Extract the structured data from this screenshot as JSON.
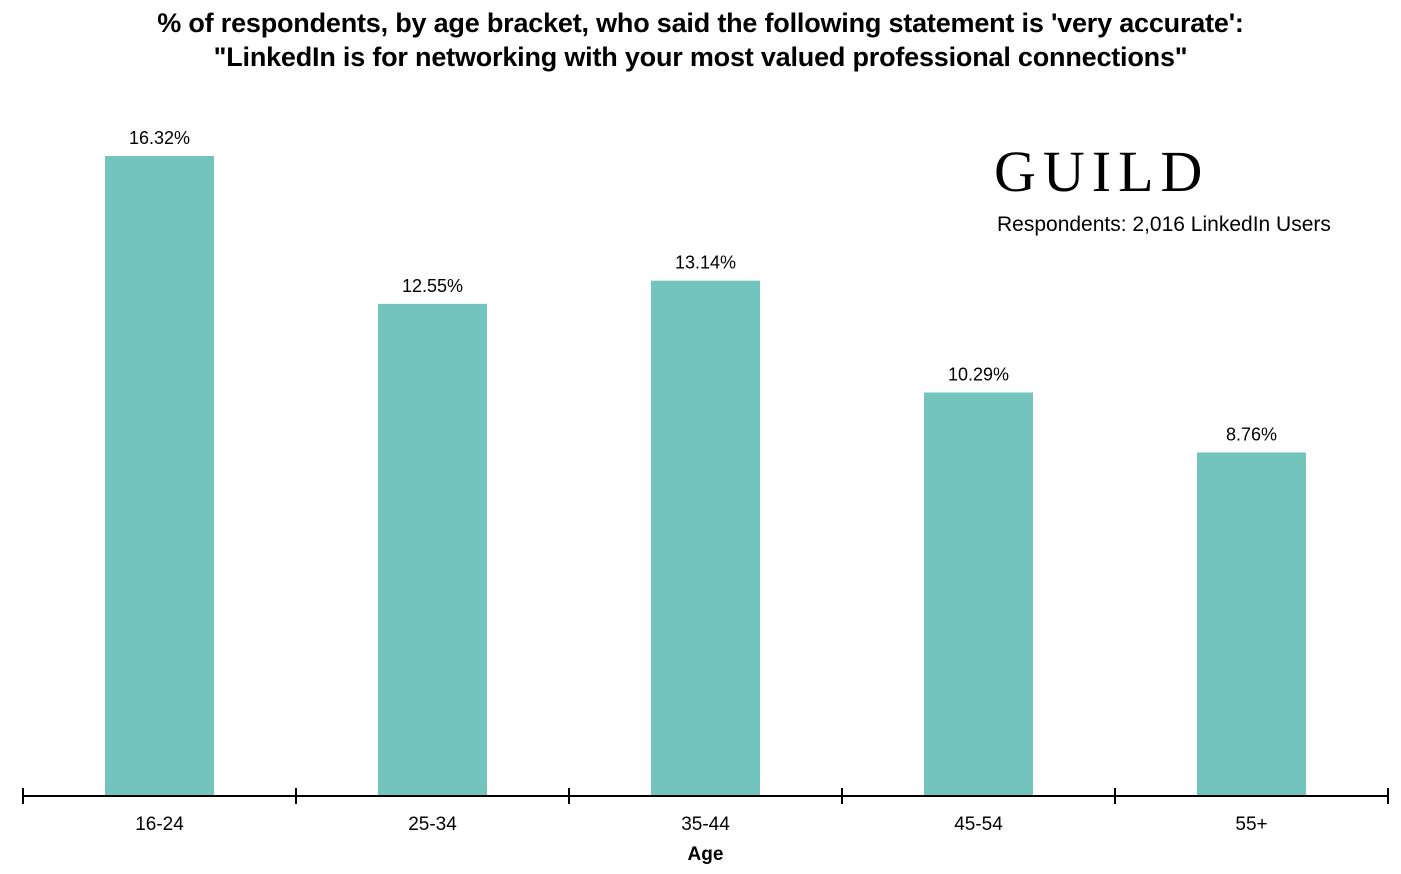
{
  "title_line1": "% of respondents, by age bracket, who said the following statement is 'very accurate':",
  "title_line2": "\"LinkedIn is for networking with your most valued professional connections\"",
  "brand": "GUILD",
  "respondents_note": "Respondents: 2,016 LinkedIn Users",
  "chart_data": {
    "type": "bar",
    "title": "% of respondents, by age bracket, who said the following statement is 'very accurate': \"LinkedIn is for networking with your most valued professional connections\"",
    "xlabel": "Age",
    "ylabel": "",
    "categories": [
      "16-24",
      "25-34",
      "35-44",
      "45-54",
      "55+"
    ],
    "values": [
      16.32,
      12.55,
      13.14,
      10.29,
      8.76
    ],
    "value_labels": [
      "16.32%",
      "12.55%",
      "13.14%",
      "10.29%",
      "8.76%"
    ],
    "ylim": [
      0,
      16.32
    ],
    "bar_color": "#73c4bc",
    "grid": false,
    "legend": "none"
  }
}
